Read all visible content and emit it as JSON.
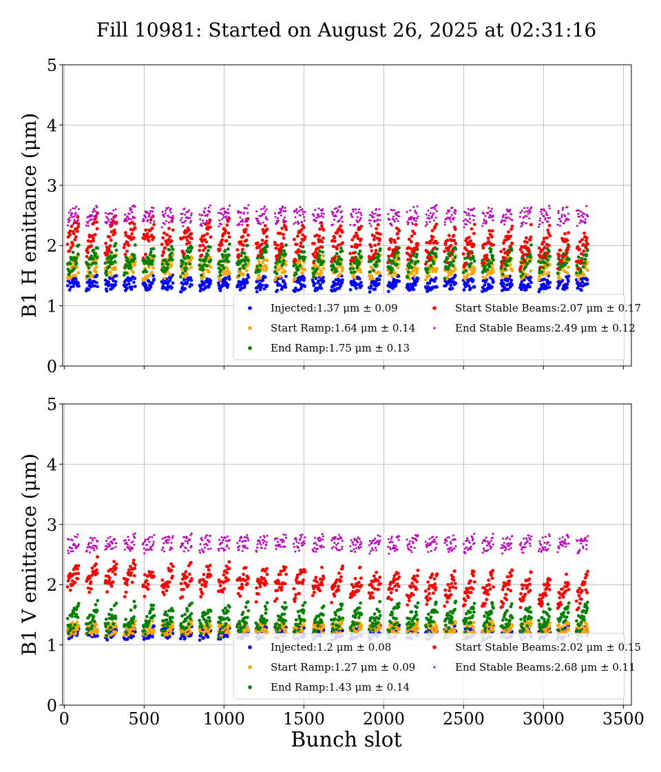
{
  "title": "Fill 10981: Started on August 26, 2025 at 02:31:16",
  "colors": {
    "injected": "#0000ff",
    "start_ramp": "#ffa500",
    "end_ramp": "#008000",
    "start_stable": "#ff0000",
    "end_stable": "#bf00bf",
    "grid": "#b0b0b0"
  },
  "chart_data": [
    {
      "type": "scatter",
      "ylabel": "B1 H emittance (μm)",
      "xlabel": "",
      "xlim": [
        -10,
        3550
      ],
      "ylim": [
        0,
        5
      ],
      "xticks": [
        "0",
        "500",
        "1000",
        "1500",
        "2000",
        "2500",
        "3000",
        "3500"
      ],
      "yticks": [
        "0",
        "1",
        "2",
        "3",
        "4",
        "5"
      ],
      "grid": true,
      "legend_placement": "lower-right",
      "series": [
        {
          "name": "Injected:1.37 μm ± 0.09",
          "key": "injected",
          "mean": 1.37,
          "std": 0.09
        },
        {
          "name": "Start Ramp:1.64 μm ± 0.14",
          "key": "start_ramp",
          "mean": 1.64,
          "std": 0.14
        },
        {
          "name": "End Ramp:1.75 μm ± 0.13",
          "key": "end_ramp",
          "mean": 1.75,
          "std": 0.13
        },
        {
          "name": "Start Stable Beams:2.07 μm ± 0.17",
          "key": "start_stable",
          "mean": 2.07,
          "std": 0.17
        },
        {
          "name": "End Stable Beams:2.49 μm ± 0.12",
          "key": "end_stable",
          "mean": 2.49,
          "std": 0.12
        }
      ]
    },
    {
      "type": "scatter",
      "ylabel": "B1 V emittance (μm)",
      "xlabel": "Bunch slot",
      "xlim": [
        -10,
        3550
      ],
      "ylim": [
        0,
        5
      ],
      "xticks": [
        "0",
        "500",
        "1000",
        "1500",
        "2000",
        "2500",
        "3000",
        "3500"
      ],
      "yticks": [
        "0",
        "1",
        "2",
        "3",
        "4",
        "5"
      ],
      "grid": true,
      "legend_placement": "lower-right",
      "series": [
        {
          "name": "Injected:1.2 μm ± 0.08",
          "key": "injected",
          "mean": 1.2,
          "std": 0.08
        },
        {
          "name": "Start Ramp:1.27 μm ± 0.09",
          "key": "start_ramp",
          "mean": 1.27,
          "std": 0.09
        },
        {
          "name": "End Ramp:1.43 μm ± 0.14",
          "key": "end_ramp",
          "mean": 1.43,
          "std": 0.14
        },
        {
          "name": "Start Stable Beams:2.02 μm ± 0.15",
          "key": "start_stable",
          "mean": 2.02,
          "std": 0.15
        },
        {
          "name": "End Stable Beams:2.68 μm ± 0.11",
          "key": "end_stable",
          "mean": 2.68,
          "std": 0.11
        }
      ]
    }
  ]
}
